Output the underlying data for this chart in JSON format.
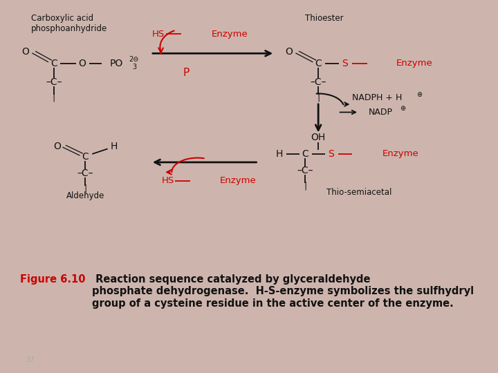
{
  "fig_bg": "#cdb5ad",
  "box_bg": "#ffffff",
  "border_color": "#cc0000",
  "border_lw": 2.5,
  "red": "#cc0000",
  "black": "#111111",
  "caption_red": "#cc0000",
  "caption_black": "#111111",
  "caption_label": "Figure 6.10",
  "caption_body": " Reaction sequence catalyzed by glyceraldehyde\nphosphate dehydrogenase.  H-S-enzyme symbolizes the sulfhydryl\ngroup of a cysteine residue in the active center of the enzyme.",
  "page_num": "37"
}
